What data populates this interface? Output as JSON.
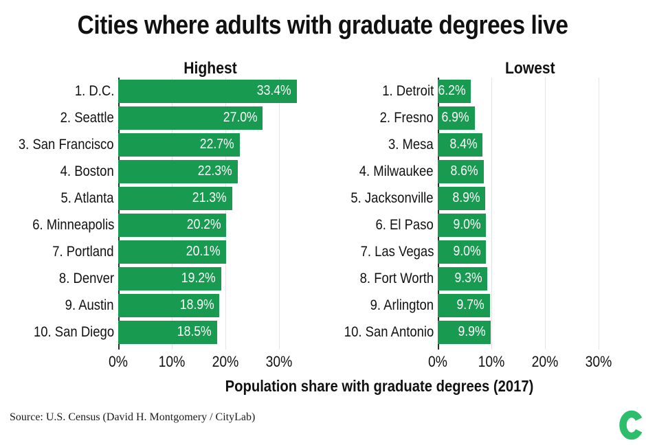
{
  "title": "Cities where adults with graduate degrees live",
  "xaxis_label": "Population share with graduate degrees (2017)",
  "source": "Source: U.S. Census (David H. Montgomery / CityLab)",
  "logo_name": "citylab-c-logo",
  "colors": {
    "bar": "#189a50",
    "bar_value_text": "#ffffff",
    "logo": "#2cbe6c",
    "grid": "#e4e4e4",
    "axis": "#2d2d2d",
    "text": "#111111"
  },
  "ticks": [
    "0%",
    "10%",
    "20%",
    "30%"
  ],
  "chart_data": [
    {
      "type": "bar",
      "orientation": "horizontal",
      "title": "Highest",
      "categories": [
        "1. D.C.",
        "2. Seattle",
        "3. San Francisco",
        "4. Boston",
        "5. Atlanta",
        "6. Minneapolis",
        "7. Portland",
        "8. Denver",
        "9. Austin",
        "10. San Diego"
      ],
      "values": [
        33.4,
        27.0,
        22.7,
        22.3,
        21.3,
        20.2,
        20.1,
        19.2,
        18.9,
        18.5
      ],
      "labels": [
        "33.4%",
        "27.0%",
        "22.7%",
        "22.3%",
        "21.3%",
        "20.2%",
        "20.1%",
        "19.2%",
        "18.9%",
        "18.5%"
      ],
      "xlim": [
        0,
        34.4
      ],
      "x_tick_values": [
        0,
        10,
        20,
        30
      ],
      "grid": "vertical-light",
      "legend": "none"
    },
    {
      "type": "bar",
      "orientation": "horizontal",
      "title": "Lowest",
      "categories": [
        "1. Detroit",
        "2. Fresno",
        "3. Mesa",
        "4. Milwaukee",
        "5. Jacksonville",
        "6. El Paso",
        "7. Las Vegas",
        "8. Fort Worth",
        "9. Arlington",
        "10. San Antonio"
      ],
      "values": [
        6.2,
        6.9,
        8.4,
        8.6,
        8.9,
        9.0,
        9.0,
        9.3,
        9.7,
        9.9
      ],
      "labels": [
        "6.2%",
        "6.9%",
        "8.4%",
        "8.6%",
        "8.9%",
        "9.0%",
        "9.0%",
        "9.3%",
        "9.7%",
        "9.9%"
      ],
      "xlim": [
        0,
        34.4
      ],
      "x_tick_values": [
        0,
        10,
        20,
        30
      ],
      "grid": "vertical-light",
      "legend": "none"
    }
  ]
}
